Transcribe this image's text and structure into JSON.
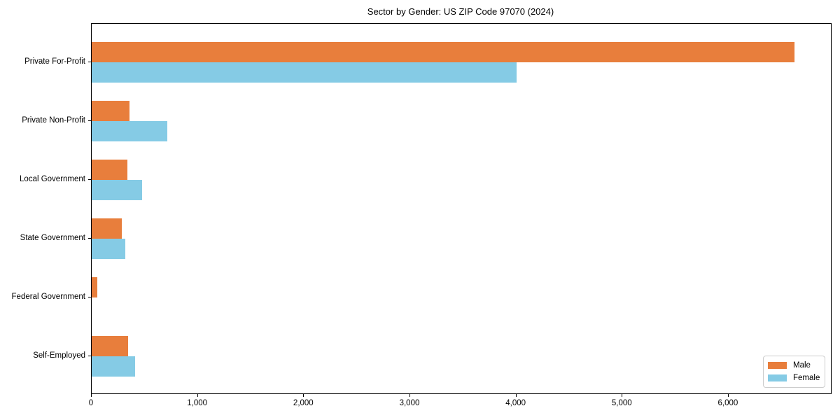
{
  "chart_data": {
    "type": "bar",
    "orientation": "horizontal",
    "title": "Sector by Gender: US ZIP Code 97070 (2024)",
    "xlabel": "",
    "ylabel": "",
    "categories": [
      "Private For-Profit",
      "Private Non-Profit",
      "Local Government",
      "State Government",
      "Federal Government",
      "Self-Employed"
    ],
    "series": [
      {
        "name": "Male",
        "color": "#e87e3c",
        "values": [
          6620,
          358,
          336,
          285,
          55,
          341
        ]
      },
      {
        "name": "Female",
        "color": "#85cbe5",
        "values": [
          4000,
          714,
          477,
          318,
          0,
          409
        ]
      }
    ],
    "xlim": [
      0,
      6963
    ],
    "xticks": [
      0,
      1000,
      2000,
      3000,
      4000,
      5000,
      6000
    ],
    "xtick_labels": [
      "0",
      "1,000",
      "2,000",
      "3,000",
      "4,000",
      "5,000",
      "6,000"
    ],
    "grid": false,
    "legend_position": "lower right",
    "background_color": "#ffffff",
    "spine_color": "#000000"
  }
}
